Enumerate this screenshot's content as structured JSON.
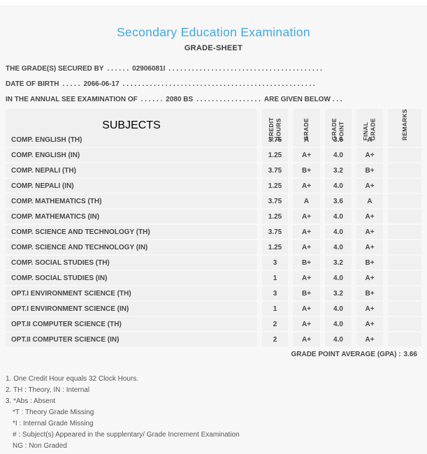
{
  "page": {
    "title": "Secondary Education Examination",
    "subtitle": "GRADE-SHEET"
  },
  "colors": {
    "accent_blue": "#42a9df",
    "page_bg": "#f7f7f7",
    "cell_bg": "#f0f0f0",
    "text_dark": "#474747"
  },
  "info": {
    "lines": [
      {
        "label": "THE GRADE(S) SECURED BY",
        "leader": ". . . . . .",
        "value": "02906081I",
        "trailer": ". . . . . . . . . . . . . . . . . . . . . . . . . . . . . . . . . . . . . . . .",
        "suffix": ""
      },
      {
        "label": "DATE OF BIRTH",
        "leader": ". . . . .",
        "value": "2066-06-17",
        "trailer": ". . . . . . . . . . . . . . . . . . . . . . . . . . . . . . . . . . . . . . . . . . . . . . . . . .",
        "suffix": ""
      },
      {
        "label": "IN THE ANNUAL SEE EXAMINATION OF",
        "leader": ". . . . . .",
        "value": "2080 BS",
        "trailer": ". . . . . . . . . . . . . . . . .",
        "suffix": "ARE GIVEN BELOW . . ."
      }
    ]
  },
  "table": {
    "subjects_header": "SUBJECTS",
    "columns": [
      "CREDIT\nHOURS",
      "GRADE",
      "GRADE\nPOINT",
      "FINAL\nGRADE",
      "REMARKS"
    ],
    "rows": [
      {
        "subject": "COMP. ENGLISH (TH)",
        "credit_hours": "3.75",
        "grade": "A",
        "grade_point": "3.6",
        "final_grade": "A",
        "remarks": ""
      },
      {
        "subject": "COMP. ENGLISH (IN)",
        "credit_hours": "1.25",
        "grade": "A+",
        "grade_point": "4.0",
        "final_grade": "A+",
        "remarks": ""
      },
      {
        "subject": "COMP. NEPALI (TH)",
        "credit_hours": "3.75",
        "grade": "B+",
        "grade_point": "3.2",
        "final_grade": "B+",
        "remarks": ""
      },
      {
        "subject": "COMP. NEPALI (IN)",
        "credit_hours": "1.25",
        "grade": "A+",
        "grade_point": "4.0",
        "final_grade": "A+",
        "remarks": ""
      },
      {
        "subject": "COMP. MATHEMATICS (TH)",
        "credit_hours": "3.75",
        "grade": "A",
        "grade_point": "3.6",
        "final_grade": "A",
        "remarks": ""
      },
      {
        "subject": "COMP. MATHEMATICS (IN)",
        "credit_hours": "1.25",
        "grade": "A+",
        "grade_point": "4.0",
        "final_grade": "A+",
        "remarks": ""
      },
      {
        "subject": "COMP. SCIENCE AND TECHNOLOGY (TH)",
        "credit_hours": "3.75",
        "grade": "A+",
        "grade_point": "4.0",
        "final_grade": "A+",
        "remarks": ""
      },
      {
        "subject": "COMP. SCIENCE AND TECHNOLOGY (IN)",
        "credit_hours": "1.25",
        "grade": "A+",
        "grade_point": "4.0",
        "final_grade": "A+",
        "remarks": ""
      },
      {
        "subject": "COMP. SOCIAL STUDIES (TH)",
        "credit_hours": "3",
        "grade": "B+",
        "grade_point": "3.2",
        "final_grade": "B+",
        "remarks": ""
      },
      {
        "subject": "COMP. SOCIAL STUDIES (IN)",
        "credit_hours": "1",
        "grade": "A+",
        "grade_point": "4.0",
        "final_grade": "A+",
        "remarks": ""
      },
      {
        "subject": "OPT.I ENVIRONMENT SCIENCE (TH)",
        "credit_hours": "3",
        "grade": "B+",
        "grade_point": "3.2",
        "final_grade": "B+",
        "remarks": ""
      },
      {
        "subject": "OPT.I ENVIRONMENT SCIENCE (IN)",
        "credit_hours": "1",
        "grade": "A+",
        "grade_point": "4.0",
        "final_grade": "A+",
        "remarks": ""
      },
      {
        "subject": "OPT.II COMPUTER SCIENCE (TH)",
        "credit_hours": "2",
        "grade": "A+",
        "grade_point": "4.0",
        "final_grade": "A+",
        "remarks": ""
      },
      {
        "subject": "OPT.II COMPUTER SCIENCE (IN)",
        "credit_hours": "2",
        "grade": "A+",
        "grade_point": "4.0",
        "final_grade": "A+",
        "remarks": ""
      }
    ]
  },
  "summary": {
    "gpa_label": "GRADE POINT AVERAGE (GPA) :",
    "gpa_value": "3.66"
  },
  "notes": [
    {
      "text": "1. One Credit Hour equals 32 Clock Hours.",
      "indent": false
    },
    {
      "text": "2. TH : Theory, IN : Internal",
      "indent": false
    },
    {
      "text": "3. *Abs : Absent",
      "indent": false
    },
    {
      "text": "*T : Theory Grade Missing",
      "indent": true
    },
    {
      "text": "*I : Internal Grade Missing",
      "indent": true
    },
    {
      "text": "# : Subject(s) Appeared in the supplentary/ Grade Increment Examination",
      "indent": true
    },
    {
      "text": "NG : Non Graded",
      "indent": true
    }
  ]
}
